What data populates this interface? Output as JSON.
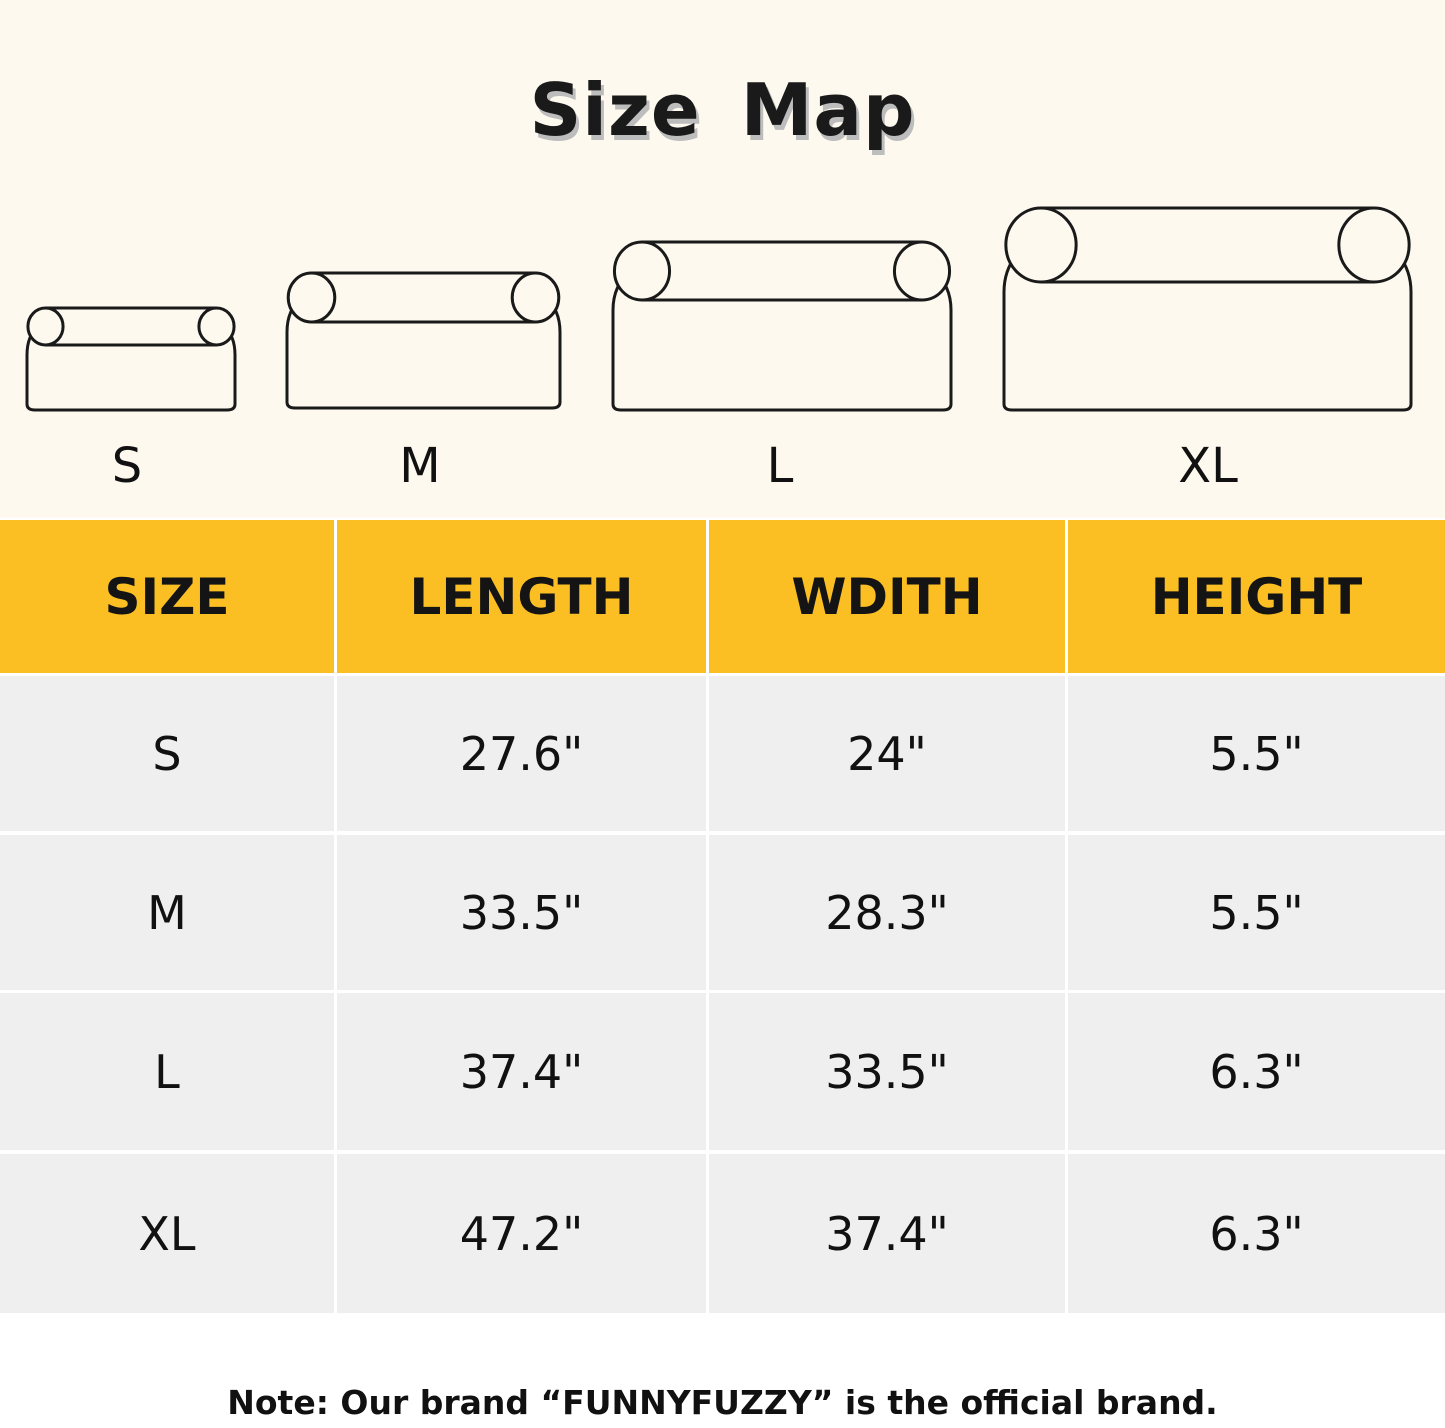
{
  "title": "Size Map",
  "bed_labels": [
    "S",
    "M",
    "L",
    "XL"
  ],
  "table": {
    "headers": [
      "SIZE",
      "LENGTH",
      "WDITH",
      "HEIGHT"
    ],
    "rows": [
      [
        "S",
        "27.6\"",
        "24\"",
        "5.5\""
      ],
      [
        "M",
        "33.5\"",
        "28.3\"",
        "5.5\""
      ],
      [
        "L",
        "37.4\"",
        "33.5\"",
        "6.3\""
      ],
      [
        "XL",
        "47.2\"",
        "37.4\"",
        "6.3\""
      ]
    ]
  },
  "note": "Note: Our brand “FUNNYFUZZY” is the official brand.",
  "colors": {
    "header": "#fbbf23",
    "row": "#efefef",
    "background": "#fdf9ef"
  }
}
